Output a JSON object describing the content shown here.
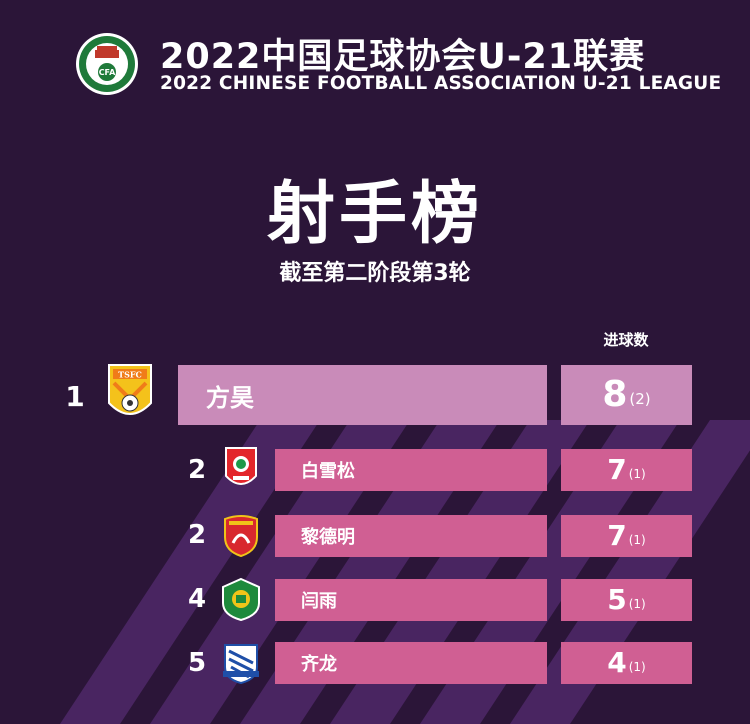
{
  "header": {
    "logo_text": "CFA",
    "logo_ring_text": "中国足球协会",
    "title_cn": "2022中国足球协会U-21联赛",
    "title_en": "2022 CHINESE FOOTBALL ASSOCIATION U-21 LEAGUE"
  },
  "main_title": "射手榜",
  "subtitle": "截至第二阶段第3轮",
  "column_header": "进球数",
  "colors": {
    "background": "#2b1538",
    "stripe": "#5a2f75",
    "first_bar": "#c98bb9",
    "other_bar": "#d05f93"
  },
  "rows": [
    {
      "rank": "1",
      "club_icon": "shandong-taishan-crest-icon",
      "crest_text": "TSFC",
      "player": "方昊",
      "goals": "8",
      "penalties": "(2)"
    },
    {
      "rank": "2",
      "club_icon": "changchun-yatai-crest-icon",
      "player": "白雪松",
      "goals": "7",
      "penalties": "(1)"
    },
    {
      "rank": "2",
      "club_icon": "shanghai-port-crest-icon",
      "player": "黎德明",
      "goals": "7",
      "penalties": "(1)"
    },
    {
      "rank": "4",
      "club_icon": "beijing-guoan-crest-icon",
      "player": "闫雨",
      "goals": "5",
      "penalties": "(1)"
    },
    {
      "rank": "5",
      "club_icon": "shanghai-shenhua-crest-icon",
      "player": "齐龙",
      "goals": "4",
      "penalties": "(1)"
    }
  ]
}
